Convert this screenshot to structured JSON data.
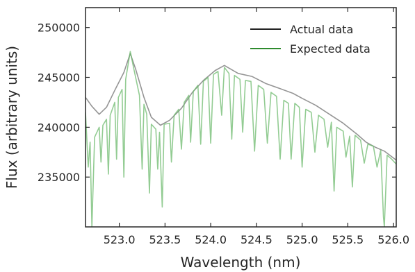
{
  "chart_data": {
    "type": "line",
    "title": "",
    "xlabel": "Wavelength (nm)",
    "ylabel": "Flux (arbitrary units)",
    "xlim": [
      522.63,
      526.03
    ],
    "ylim": [
      230000,
      252000
    ],
    "xticks": [
      523.0,
      523.5,
      524.0,
      524.5,
      525.0,
      525.5,
      526.0
    ],
    "xtick_labels": [
      "523.0",
      "523.5",
      "524.0",
      "524.5",
      "525.0",
      "525.5",
      "526.0"
    ],
    "yticks": [
      235000,
      240000,
      245000,
      250000
    ],
    "ytick_labels": [
      "235000",
      "240000",
      "245000",
      "250000"
    ],
    "grid": false,
    "legend_position": "top-right",
    "series": [
      {
        "name": "Actual data",
        "legend_color": "#222222",
        "line_color": "#8f8f8f",
        "points": [
          [
            522.63,
            243000
          ],
          [
            522.7,
            242100
          ],
          [
            522.78,
            241300
          ],
          [
            522.86,
            242000
          ],
          [
            522.95,
            243700
          ],
          [
            523.05,
            245500
          ],
          [
            523.12,
            247400
          ],
          [
            523.18,
            245800
          ],
          [
            523.27,
            243000
          ],
          [
            523.35,
            241000
          ],
          [
            523.45,
            240200
          ],
          [
            523.55,
            240700
          ],
          [
            523.68,
            241900
          ],
          [
            523.8,
            243500
          ],
          [
            523.92,
            244700
          ],
          [
            524.05,
            245700
          ],
          [
            524.15,
            246200
          ],
          [
            524.3,
            245400
          ],
          [
            524.45,
            245100
          ],
          [
            524.6,
            244400
          ],
          [
            524.75,
            243900
          ],
          [
            524.9,
            243400
          ],
          [
            525.0,
            242900
          ],
          [
            525.15,
            242200
          ],
          [
            525.3,
            241300
          ],
          [
            525.45,
            240400
          ],
          [
            525.6,
            239300
          ],
          [
            525.7,
            238500
          ],
          [
            525.8,
            238000
          ],
          [
            525.9,
            237600
          ],
          [
            526.03,
            236700
          ]
        ]
      },
      {
        "name": "Expected data",
        "legend_color": "#2e8b2e",
        "line_color": "#6fbb6f",
        "points": [
          [
            522.63,
            241500
          ],
          [
            522.66,
            236000
          ],
          [
            522.68,
            238500
          ],
          [
            522.7,
            230000
          ],
          [
            522.73,
            239000
          ],
          [
            522.78,
            240000
          ],
          [
            522.8,
            236500
          ],
          [
            522.82,
            240200
          ],
          [
            522.86,
            240800
          ],
          [
            522.88,
            235300
          ],
          [
            522.9,
            241200
          ],
          [
            522.95,
            242500
          ],
          [
            522.97,
            236800
          ],
          [
            522.99,
            243000
          ],
          [
            523.03,
            243800
          ],
          [
            523.05,
            235000
          ],
          [
            523.07,
            244800
          ],
          [
            523.12,
            247600
          ],
          [
            523.16,
            245800
          ],
          [
            523.22,
            243200
          ],
          [
            523.25,
            235800
          ],
          [
            523.27,
            242300
          ],
          [
            523.3,
            241300
          ],
          [
            523.33,
            233400
          ],
          [
            523.35,
            240300
          ],
          [
            523.4,
            239800
          ],
          [
            523.42,
            235800
          ],
          [
            523.44,
            239500
          ],
          [
            523.47,
            232000
          ],
          [
            523.49,
            240300
          ],
          [
            523.55,
            240400
          ],
          [
            523.57,
            236500
          ],
          [
            523.6,
            241200
          ],
          [
            523.65,
            241800
          ],
          [
            523.68,
            237800
          ],
          [
            523.71,
            242500
          ],
          [
            523.76,
            243200
          ],
          [
            523.78,
            238500
          ],
          [
            523.81,
            243600
          ],
          [
            523.86,
            244200
          ],
          [
            523.89,
            238300
          ],
          [
            523.92,
            244600
          ],
          [
            523.97,
            245000
          ],
          [
            524.0,
            238400
          ],
          [
            524.03,
            245300
          ],
          [
            524.08,
            245600
          ],
          [
            524.12,
            241200
          ],
          [
            524.15,
            246000
          ],
          [
            524.2,
            245400
          ],
          [
            524.23,
            238800
          ],
          [
            524.26,
            245200
          ],
          [
            524.32,
            244800
          ],
          [
            524.35,
            239500
          ],
          [
            524.38,
            244700
          ],
          [
            524.44,
            244600
          ],
          [
            524.48,
            237600
          ],
          [
            524.52,
            244200
          ],
          [
            524.58,
            243800
          ],
          [
            524.62,
            238400
          ],
          [
            524.66,
            243500
          ],
          [
            524.72,
            243100
          ],
          [
            524.76,
            236800
          ],
          [
            524.8,
            242700
          ],
          [
            524.85,
            242400
          ],
          [
            524.88,
            236800
          ],
          [
            524.92,
            242400
          ],
          [
            524.97,
            242000
          ],
          [
            525.0,
            236000
          ],
          [
            525.04,
            241800
          ],
          [
            525.1,
            241500
          ],
          [
            525.14,
            237500
          ],
          [
            525.18,
            241200
          ],
          [
            525.24,
            240800
          ],
          [
            525.28,
            238000
          ],
          [
            525.32,
            240500
          ],
          [
            525.35,
            233600
          ],
          [
            525.38,
            240000
          ],
          [
            525.45,
            239600
          ],
          [
            525.48,
            237000
          ],
          [
            525.52,
            239100
          ],
          [
            525.55,
            234000
          ],
          [
            525.58,
            239200
          ],
          [
            525.64,
            238700
          ],
          [
            525.68,
            236400
          ],
          [
            525.72,
            238300
          ],
          [
            525.78,
            238100
          ],
          [
            525.82,
            236000
          ],
          [
            525.86,
            237700
          ],
          [
            525.89,
            231000
          ],
          [
            525.9,
            230000
          ],
          [
            525.93,
            237200
          ],
          [
            525.98,
            236800
          ],
          [
            526.03,
            236300
          ]
        ]
      }
    ]
  }
}
